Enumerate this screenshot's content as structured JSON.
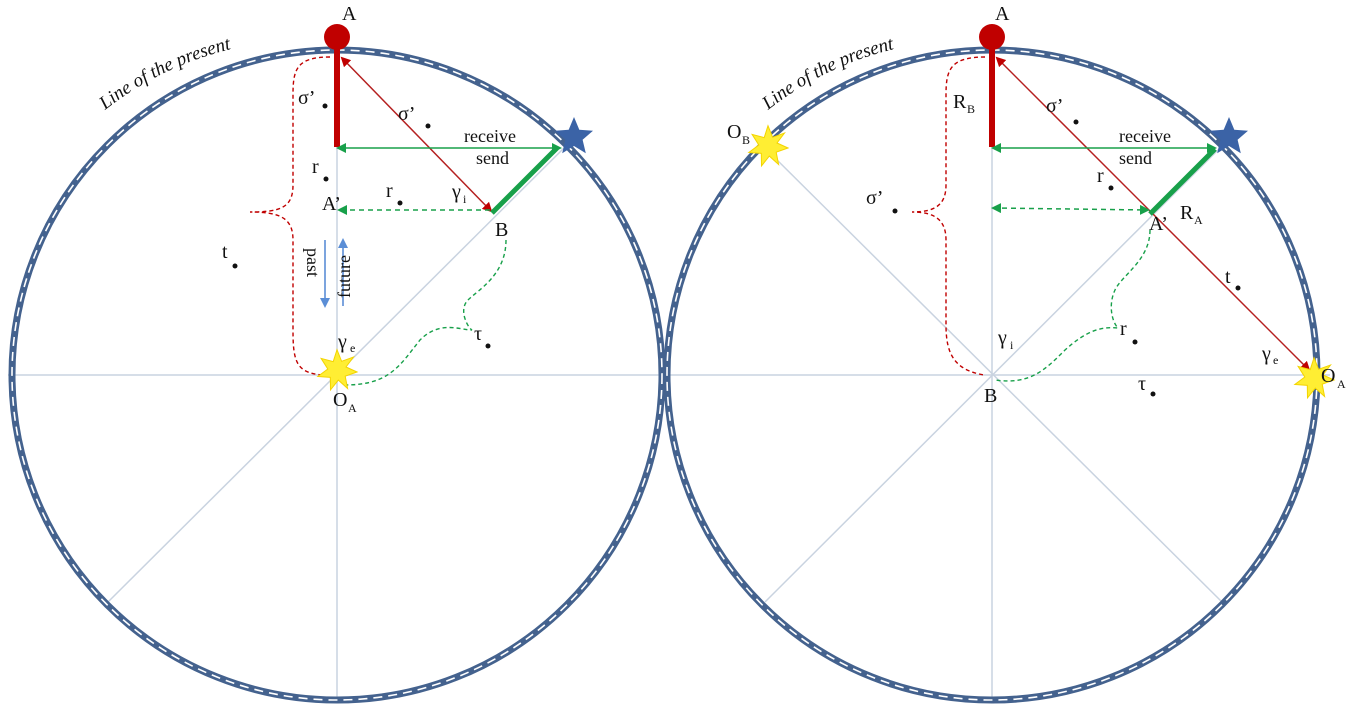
{
  "colors": {
    "circle_outer": "#44628e",
    "circle_dash": "#ffffff",
    "axis": "#c9d3e0",
    "red": "#c00000",
    "dark_red": "#b52020",
    "green": "#18a04a",
    "star": "#3b63a6",
    "explosion": "#ffee33",
    "blue_arrow": "#5b8ed6"
  },
  "left": {
    "present_line": "Line of the present",
    "point_A": "A",
    "sigma_left": "σ’",
    "sigma_right": "σ’",
    "receive": "receive",
    "send": "send",
    "r_upper": "r",
    "A_prime": "A’",
    "r_middle": "r",
    "gamma_i": "γ",
    "gamma_i_sub": "i",
    "B": "B",
    "t": "t",
    "past": "past",
    "future": "future",
    "gamma_e": "γ",
    "gamma_e_sub": "e",
    "tau": "τ",
    "O_main": "O",
    "O_sub": "A"
  },
  "right": {
    "present_line": "Line of the present",
    "point_A": "A",
    "R_main": "R",
    "R_sub": "B",
    "O_B_main": "O",
    "O_B_sub": "B",
    "sigma_upper": "σ’",
    "receive": "receive",
    "send": "send",
    "r_upper": "r",
    "sigma_left": "σ’",
    "A_prime": "A’",
    "RA_main": "R",
    "RA_sub": "A",
    "t": "t",
    "gamma_i": "γ",
    "gamma_i_sub": "i",
    "r_lower": "r",
    "gamma_e": "γ",
    "gamma_e_sub": "e",
    "B": "B",
    "tau": "τ",
    "O_A_main": "O",
    "O_A_sub": "A"
  }
}
